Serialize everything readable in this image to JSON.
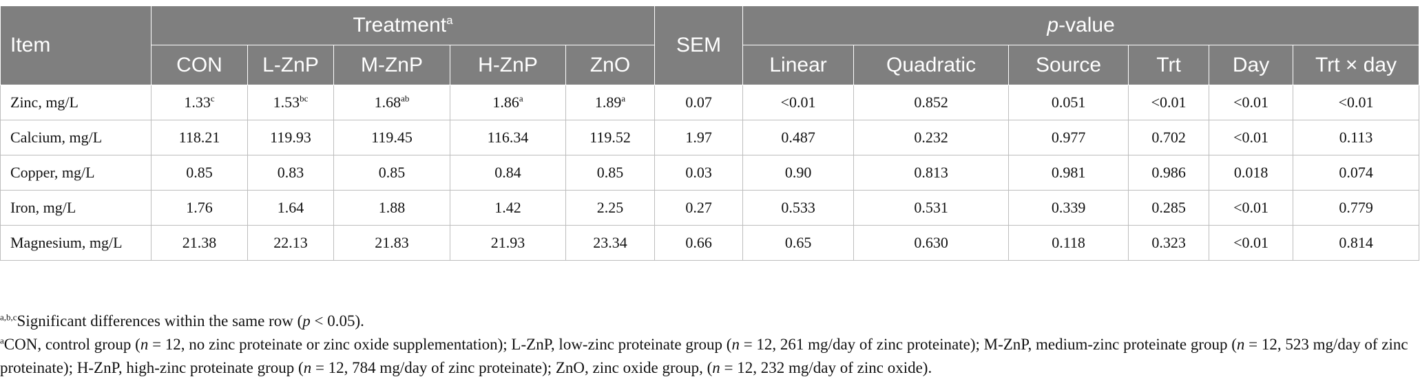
{
  "header": {
    "item": "Item",
    "treatment": "Treatment",
    "treatment_sup": "a",
    "sem": "SEM",
    "pvalue_p": "p",
    "pvalue_rest": "-value",
    "treatments": [
      "CON",
      "L-ZnP",
      "M-ZnP",
      "H-ZnP",
      "ZnO"
    ],
    "pcols": [
      "Linear",
      "Quadratic",
      "Source",
      "Trt",
      "Day",
      "Trt × day"
    ]
  },
  "rows": [
    {
      "label": "Zinc, mg/L",
      "vals": [
        {
          "v": "1.33",
          "s": "c"
        },
        {
          "v": "1.53",
          "s": "bc"
        },
        {
          "v": "1.68",
          "s": "ab"
        },
        {
          "v": "1.86",
          "s": "a"
        },
        {
          "v": "1.89",
          "s": "a"
        }
      ],
      "sem": "0.07",
      "p": [
        "<0.01",
        "0.852",
        "0.051",
        "<0.01",
        "<0.01",
        "<0.01"
      ]
    },
    {
      "label": "Calcium, mg/L",
      "vals": [
        {
          "v": "118.21",
          "s": ""
        },
        {
          "v": "119.93",
          "s": ""
        },
        {
          "v": "119.45",
          "s": ""
        },
        {
          "v": "116.34",
          "s": ""
        },
        {
          "v": "119.52",
          "s": ""
        }
      ],
      "sem": "1.97",
      "p": [
        "0.487",
        "0.232",
        "0.977",
        "0.702",
        "<0.01",
        "0.113"
      ]
    },
    {
      "label": "Copper, mg/L",
      "vals": [
        {
          "v": "0.85",
          "s": ""
        },
        {
          "v": "0.83",
          "s": ""
        },
        {
          "v": "0.85",
          "s": ""
        },
        {
          "v": "0.84",
          "s": ""
        },
        {
          "v": "0.85",
          "s": ""
        }
      ],
      "sem": "0.03",
      "p": [
        "0.90",
        "0.813",
        "0.981",
        "0.986",
        "0.018",
        "0.074"
      ]
    },
    {
      "label": "Iron, mg/L",
      "vals": [
        {
          "v": "1.76",
          "s": ""
        },
        {
          "v": "1.64",
          "s": ""
        },
        {
          "v": "1.88",
          "s": ""
        },
        {
          "v": "1.42",
          "s": ""
        },
        {
          "v": "2.25",
          "s": ""
        }
      ],
      "sem": "0.27",
      "p": [
        "0.533",
        "0.531",
        "0.339",
        "0.285",
        "<0.01",
        "0.779"
      ]
    },
    {
      "label": "Magnesium, mg/L",
      "vals": [
        {
          "v": "21.38",
          "s": ""
        },
        {
          "v": "22.13",
          "s": ""
        },
        {
          "v": "21.83",
          "s": ""
        },
        {
          "v": "21.93",
          "s": ""
        },
        {
          "v": "23.34",
          "s": ""
        }
      ],
      "sem": "0.66",
      "p": [
        "0.65",
        "0.630",
        "0.118",
        "0.323",
        "<0.01",
        "0.814"
      ]
    }
  ],
  "notes": {
    "n1_sup": "a,b,c",
    "n1_a": "Significant differences within the same row (",
    "n1_p": "p",
    "n1_b": " < 0.05).",
    "n2_sup": "a",
    "n2_parts": [
      "CON, control group (",
      "n",
      " = 12, no zinc proteinate or zinc oxide supplementation); L-ZnP, low-zinc proteinate group (",
      "n",
      " = 12, 261 mg/day of zinc proteinate); M-ZnP, medium-zinc proteinate group (",
      "n",
      " = 12, 523 mg/day of zinc proteinate); H-ZnP, high-zinc proteinate group (",
      "n",
      " = 12, 784 mg/day of zinc proteinate); ZnO, zinc oxide group, (",
      "n",
      " = 12, 232 mg/day of zinc oxide)."
    ]
  }
}
